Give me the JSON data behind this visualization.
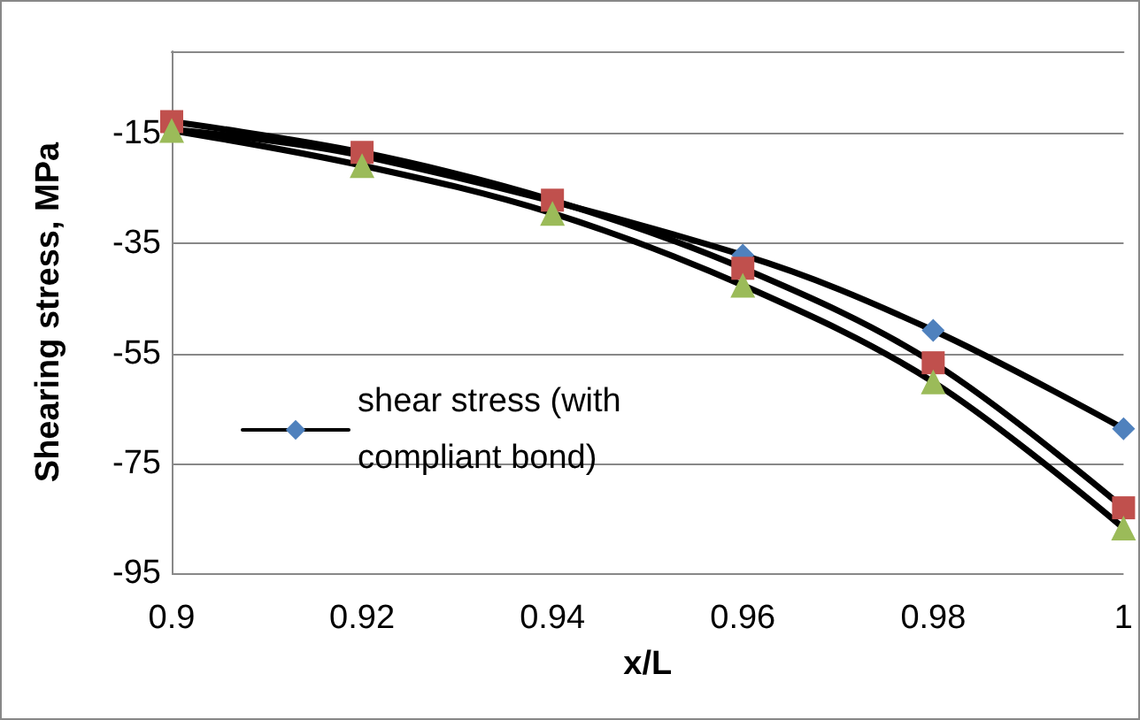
{
  "chart_data": {
    "type": "line",
    "xlabel": "x/L",
    "ylabel": "Shearing stress, MPa",
    "x": [
      0.9,
      0.92,
      0.94,
      0.96,
      0.98,
      1
    ],
    "series": [
      {
        "name": "shear stress (with compliant bond)",
        "color": "#4f81bd",
        "marker": "diamond",
        "values": [
          -14.2,
          -19,
          null,
          -37.1,
          -50.8,
          -68.7
        ]
      },
      {
        "color": "#c0504d",
        "marker": "square",
        "values": [
          -12.8,
          -18.4,
          -27.1,
          -39.5,
          -56.7,
          -83.1
        ]
      },
      {
        "color": "#9bbb59",
        "marker": "triangle",
        "values": [
          -14.4,
          -20.8,
          -29.5,
          -42.6,
          -60.2,
          -86.8
        ]
      }
    ],
    "xlim": [
      0.9,
      1
    ],
    "xticks": [
      0.9,
      0.92,
      0.94,
      0.96,
      0.98,
      1
    ],
    "ylim": [
      -95,
      0
    ],
    "yticks": [
      -95,
      -75,
      -55,
      -35,
      -15
    ],
    "grid": "y",
    "legend": "left",
    "line_style": "solid"
  }
}
